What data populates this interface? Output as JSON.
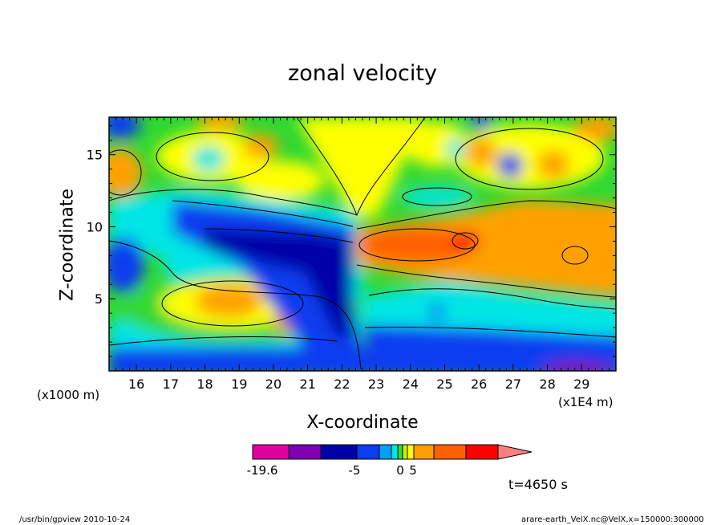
{
  "chart_data": {
    "type": "heatmap",
    "title": "zonal velocity",
    "xlabel": "X-coordinate",
    "ylabel": "Z-coordinate",
    "x_unit": "(x1E4 m)",
    "y_unit": "(x1000 m)",
    "xlim": [
      15.2,
      30.0
    ],
    "ylim": [
      0.0,
      17.6
    ],
    "x_ticks": [
      16,
      17,
      18,
      19,
      20,
      21,
      22,
      23,
      24,
      25,
      26,
      27,
      28,
      29
    ],
    "y_ticks": [
      5,
      10,
      15
    ],
    "colorbar": {
      "tick_labels": [
        {
          "label": "-19.6",
          "value": -19.6
        },
        {
          "label": "-5",
          "value": -5
        },
        {
          "label": "0",
          "value": 0
        },
        {
          "label": "5",
          "value": 5
        }
      ],
      "levels": [
        -19.6,
        -15,
        -10,
        -5,
        -3,
        -1,
        0,
        1,
        3,
        5,
        8,
        12
      ],
      "colors": [
        "#e0009e",
        "#8000b4",
        "#0000a8",
        "#0a3cf0",
        "#00a0ff",
        "#00e6e6",
        "#30d830",
        "#c8f000",
        "#ffff00",
        "#ffa000",
        "#ff6000",
        "#ff0000",
        "#ff8080"
      ]
    },
    "annotation": "t=4650 s"
  },
  "footer": {
    "left": "/usr/bin/gpview   2010-10-24",
    "right": "arare-earth_VelX.nc@VelX,x=150000:300000"
  }
}
